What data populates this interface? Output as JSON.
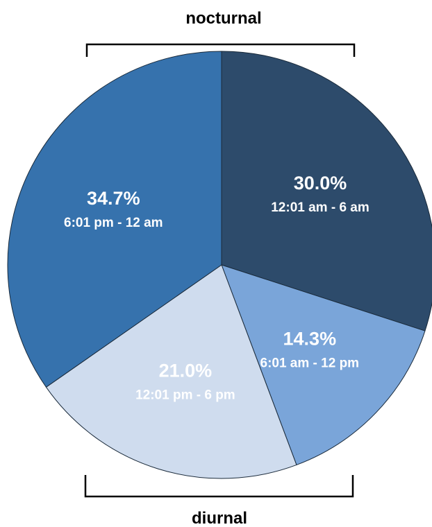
{
  "chart_data": {
    "type": "pie",
    "start_angle_deg": 0,
    "direction": "clockwise",
    "slices": [
      {
        "label": "12:01 am - 6 am",
        "value": 30.0,
        "value_label": "30.0%",
        "color": "#2d4b6b"
      },
      {
        "label": "6:01 am - 12 pm",
        "value": 14.3,
        "value_label": "14.3%",
        "color": "#7aa5d9"
      },
      {
        "label": "12:01 pm - 6 pm",
        "value": 21.0,
        "value_label": "21.0%",
        "color": "#cfdcee"
      },
      {
        "label": "6:01 pm - 12 am",
        "value": 34.7,
        "value_label": "34.7%",
        "color": "#3672ad"
      }
    ],
    "annotations": [
      {
        "text": "nocturnal",
        "position": "top"
      },
      {
        "text": "diurnal",
        "position": "bottom"
      }
    ]
  }
}
